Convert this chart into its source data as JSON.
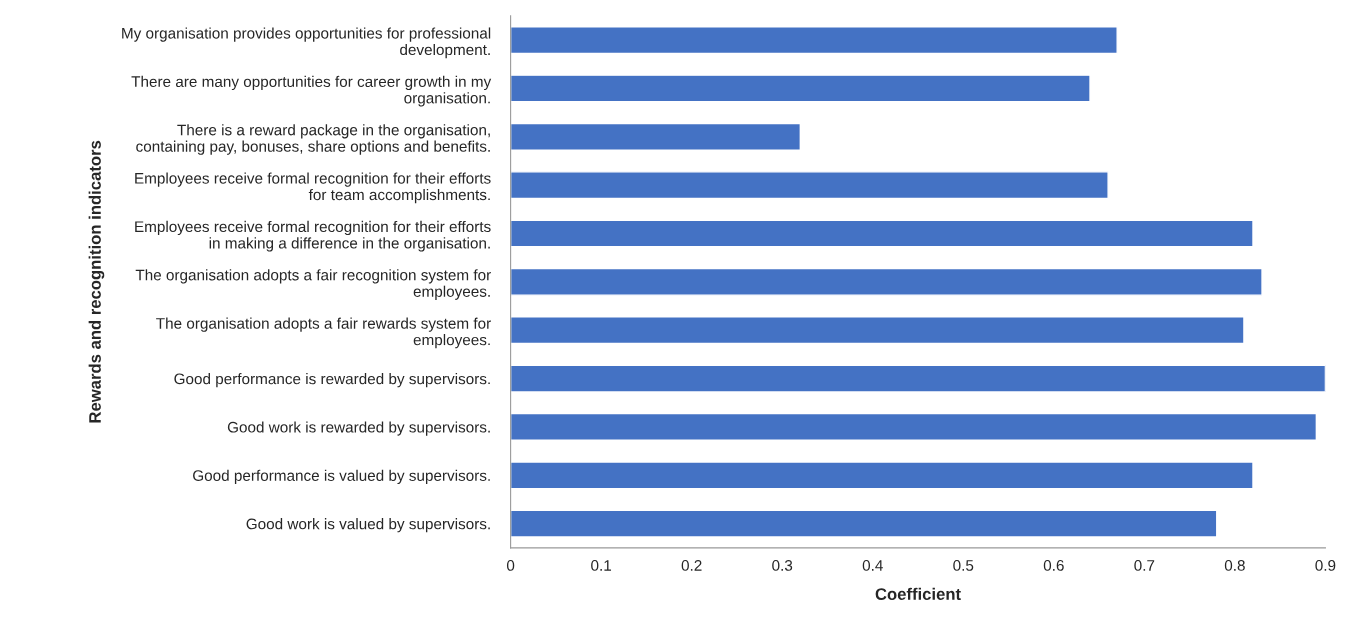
{
  "chart_data": {
    "type": "bar",
    "orientation": "horizontal",
    "xlabel": "Coefficient",
    "ylabel": "Rewards and recognition indicators",
    "categories": [
      "My organisation provides opportunities for professional development.",
      "There are many opportunities for career growth in my organisation.",
      "There is a reward package in the organisation, containing pay, bonuses, share options and benefits.",
      "Employees receive formal recognition for their efforts for team accomplishments.",
      "Employees receive formal recognition for their efforts in making a difference in the organisation.",
      "The organisation adopts a fair recognition system for employees.",
      "The organisation adopts a fair rewards system for employees.",
      "Good performance is rewarded by supervisors.",
      "Good work is rewarded by supervisors.",
      "Good performance is valued by supervisors.",
      "Good work is valued by supervisors."
    ],
    "values": [
      0.67,
      0.64,
      0.32,
      0.66,
      0.82,
      0.83,
      0.81,
      0.9,
      0.89,
      0.82,
      0.78
    ],
    "color": "#4472c4",
    "xlim": [
      0,
      0.9
    ],
    "xticks": [
      0,
      {
        "value": 0.1,
        "label": "0.1"
      },
      {
        "value": 0.2,
        "label": "0.2"
      },
      {
        "value": 0.3,
        "label": "0.3"
      },
      {
        "value": 0.4,
        "label": "0.4"
      },
      {
        "value": 0.5,
        "label": "0.5"
      },
      {
        "value": 0.6,
        "label": "0.6"
      },
      {
        "value": 0.7,
        "label": "0.7"
      },
      {
        "value": 0.8,
        "label": "0.8"
      },
      {
        "value": 0.9,
        "label": "0.9"
      }
    ],
    "grid": false,
    "legend": false
  }
}
